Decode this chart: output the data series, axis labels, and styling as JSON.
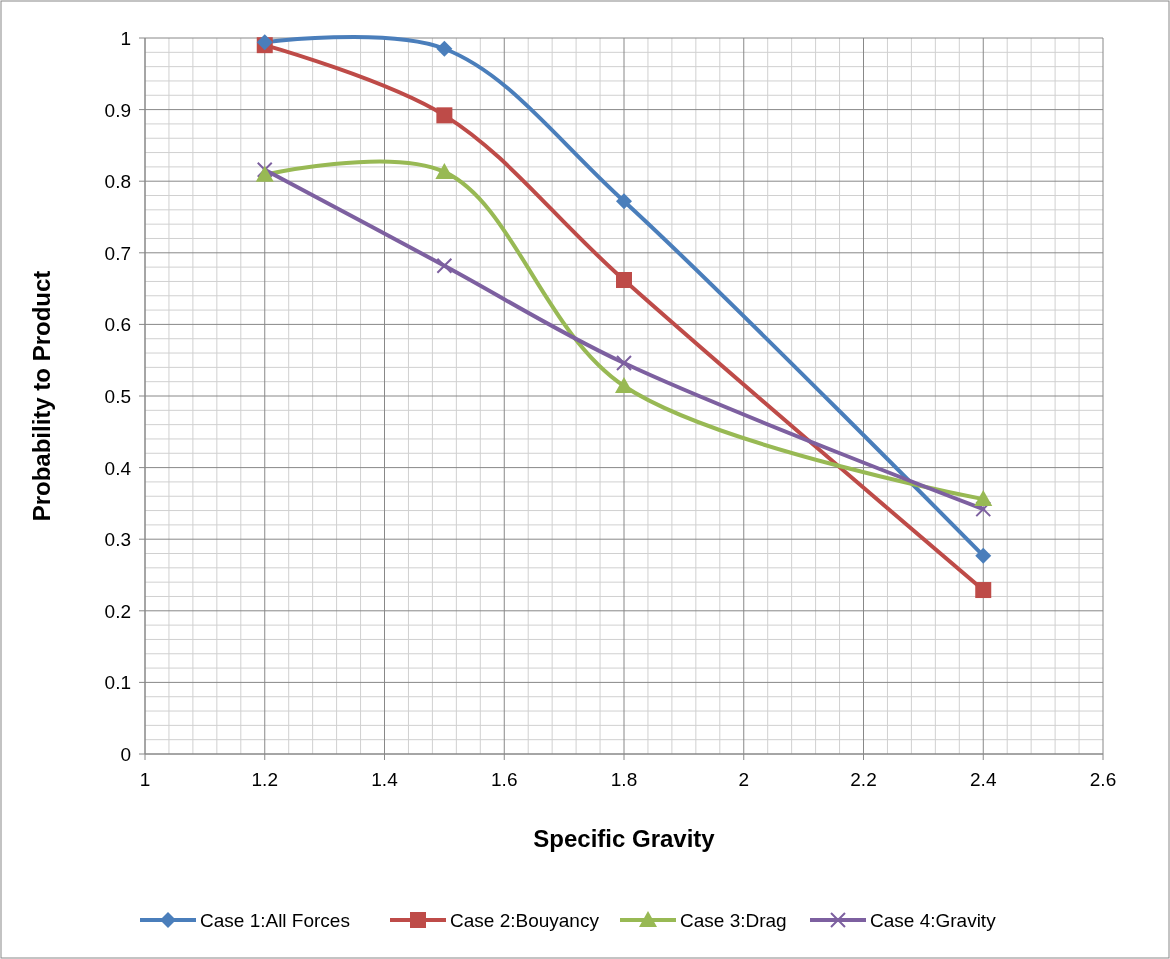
{
  "chart_data": {
    "type": "line",
    "xlabel": "Specific Gravity",
    "ylabel": "Probability to Product",
    "x": [
      1.2,
      1.5,
      1.8,
      2.4
    ],
    "xlim": [
      1,
      2.6
    ],
    "xticks": [
      1,
      1.2,
      1.4,
      1.6,
      1.8,
      2,
      2.2,
      2.4,
      2.6
    ],
    "ylim": [
      0,
      1
    ],
    "yticks": [
      0,
      0.1,
      0.2,
      0.3,
      0.4,
      0.5,
      0.6,
      0.7,
      0.8,
      0.9,
      1
    ],
    "grid": true,
    "legend": "bottom",
    "line_style": "solid",
    "series": [
      {
        "name": "Case 1:All Forces",
        "color": "#4a7ebb",
        "marker": "diamond",
        "values": [
          0.994,
          0.985,
          0.772,
          0.277
        ]
      },
      {
        "name": "Case 2:Bouyancy",
        "color": "#be4b48",
        "marker": "square",
        "values": [
          0.99,
          0.892,
          0.662,
          0.229
        ]
      },
      {
        "name": "Case 3:Drag",
        "color": "#98b954",
        "marker": "triangle",
        "values": [
          0.809,
          0.813,
          0.514,
          0.356
        ]
      },
      {
        "name": "Case 4:Gravity",
        "color": "#7d60a0",
        "marker": "cross",
        "values": [
          0.816,
          0.682,
          0.546,
          0.342
        ]
      }
    ]
  }
}
